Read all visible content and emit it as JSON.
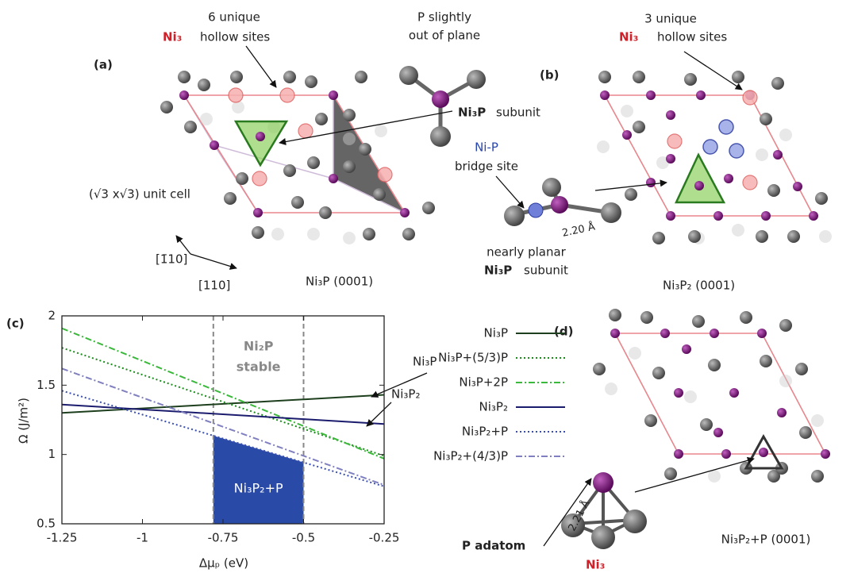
{
  "panel_a": {
    "label": "(a)",
    "hollow_1": "6 unique",
    "hollow_2": "hollow sites",
    "ni3": "Ni₃",
    "p_1": "P slightly",
    "p_2": "out of plane",
    "subunit_bold": "Ni₃P",
    "subunit": "subunit",
    "cell": "(√3 x√3) unit cell",
    "dir_1": "[1̄10]",
    "dir_2": "[110]",
    "caption": "Ni₃P (0001)"
  },
  "panel_b": {
    "label": "(b)",
    "hollow_1": "3 unique",
    "hollow_2": "hollow sites",
    "ni3": "Ni₃",
    "bridge_1": "Ni-P",
    "bridge_2": "bridge site",
    "distance": "2.20 Å",
    "planar_1": "nearly planar",
    "planar_bold": "Ni₃P",
    "planar_2": "subunit",
    "caption": "Ni₃P₂ (0001)"
  },
  "panel_d": {
    "label": "(d)",
    "adatom": "P adatom",
    "distance": "2.21 Å",
    "ni3": "Ni₃",
    "caption": "Ni₃P₂+P (0001)"
  },
  "chart_data": {
    "type": "line",
    "panel_label": "(c)",
    "xlabel": "Δμₚ (eV)",
    "ylabel": "Ω (J/m²)",
    "x": [
      -1.25,
      -0.25
    ],
    "series": [
      {
        "name": "Ni₃P",
        "color": "#1d3f1d",
        "style": "solid",
        "values": [
          1.3,
          1.43
        ]
      },
      {
        "name": "Ni₃P+(5/3)P",
        "color": "#1a8c1a",
        "style": "dotted",
        "values": [
          1.77,
          0.99
        ]
      },
      {
        "name": "Ni₃P+2P",
        "color": "#3cb83c",
        "style": "dashdot",
        "values": [
          1.91,
          0.97
        ]
      },
      {
        "name": "Ni₃P₂",
        "color": "#1c1c6e",
        "style": "solid",
        "values": [
          1.36,
          1.22
        ]
      },
      {
        "name": "Ni₃P₂+P",
        "color": "#3a4fb0",
        "style": "dotted",
        "values": [
          1.46,
          0.77
        ]
      },
      {
        "name": "Ni₃P₂+(4/3)P",
        "color": "#8080c0",
        "style": "dashdot",
        "values": [
          1.62,
          0.78
        ]
      }
    ],
    "stable_region": [
      -0.78,
      -0.5
    ],
    "region_color": "#2a4aa8",
    "region_text_1": "Ni₂P",
    "region_text_2": "stable",
    "region_fill_label": "Ni₃P₂+P",
    "arrow_label_1": "Ni₃P",
    "arrow_label_2": "Ni₃P₂",
    "xlim": [
      -1.25,
      -0.25
    ],
    "ylim": [
      0.5,
      2
    ],
    "xticks": [
      -1.25,
      -1,
      -0.75,
      -0.5,
      -0.25
    ],
    "yticks": [
      0.5,
      1,
      1.5,
      2
    ]
  }
}
